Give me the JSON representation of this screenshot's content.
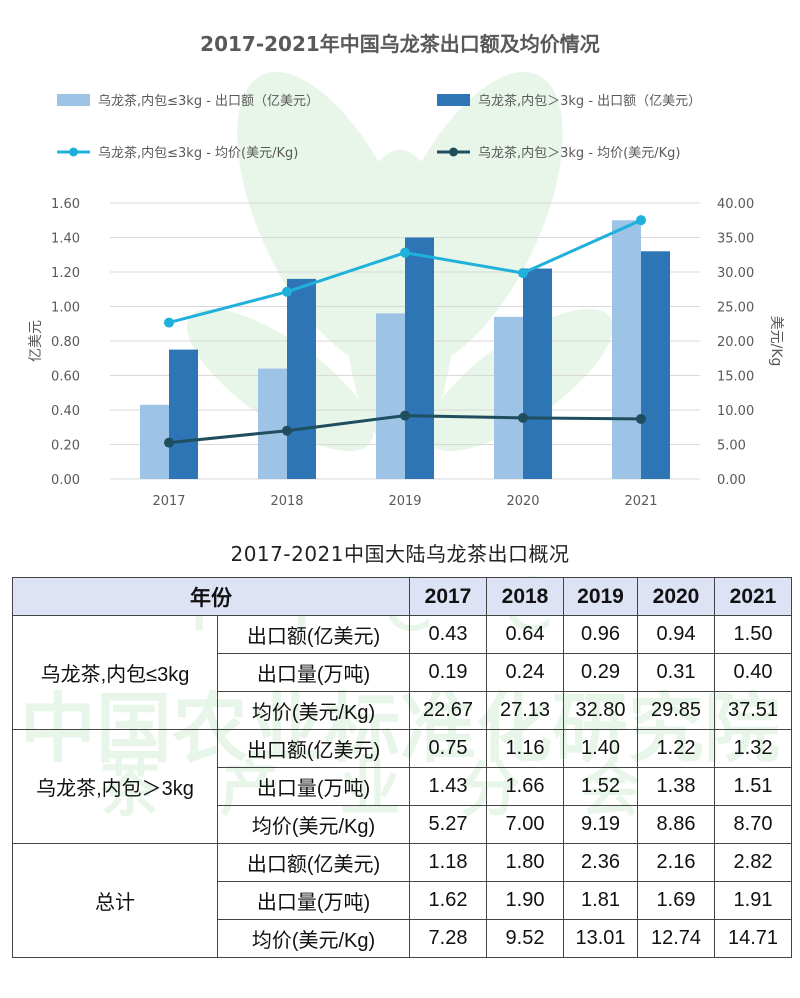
{
  "chart_data": {
    "type": "bar",
    "title": "2017-2021年中国乌龙茶出口额及均价情况",
    "categories": [
      "2017",
      "2018",
      "2019",
      "2020",
      "2021"
    ],
    "series": [
      {
        "name": "乌龙茶,内包≤3kg - 出口额（亿美元）",
        "type": "bar",
        "axis": "left",
        "color": "#9dc3e6",
        "values": [
          0.43,
          0.64,
          0.96,
          0.94,
          1.5
        ]
      },
      {
        "name": "乌龙茶,内包＞3kg - 出口额（亿美元）",
        "type": "bar",
        "axis": "left",
        "color": "#2e75b6",
        "values": [
          0.75,
          1.16,
          1.4,
          1.22,
          1.32
        ]
      },
      {
        "name": "乌龙茶,内包≤3kg - 均价(美元/Kg)",
        "type": "line",
        "axis": "right",
        "color": "#1fb1dc",
        "values": [
          22.67,
          27.13,
          32.8,
          29.85,
          37.51
        ]
      },
      {
        "name": "乌龙茶,内包＞3kg - 均价(美元/Kg)",
        "type": "line",
        "axis": "right",
        "color": "#1f4e5f",
        "values": [
          5.27,
          7.0,
          9.19,
          8.86,
          8.7
        ]
      }
    ],
    "y_left": {
      "label": "亿美元",
      "range": [
        0,
        1.6
      ],
      "ticks": [
        "0.00",
        "0.20",
        "0.40",
        "0.60",
        "0.80",
        "1.00",
        "1.20",
        "1.40",
        "1.60"
      ]
    },
    "y_right": {
      "label": "美元/Kg",
      "range": [
        0,
        40
      ],
      "ticks": [
        "0.00",
        "5.00",
        "10.00",
        "15.00",
        "20.00",
        "25.00",
        "30.00",
        "35.00",
        "40.00"
      ]
    },
    "grid": true,
    "legend_position": "top"
  },
  "table": {
    "title": "2017-2021中国大陆乌龙茶出口概况",
    "header": {
      "label": "年份",
      "years": [
        "2017",
        "2018",
        "2019",
        "2020",
        "2021"
      ]
    },
    "groups": [
      {
        "name": "乌龙茶,内包≤3kg",
        "rows": [
          {
            "metric": "出口额(亿美元)",
            "values": [
              "0.43",
              "0.64",
              "0.96",
              "0.94",
              "1.50"
            ]
          },
          {
            "metric": "出口量(万吨)",
            "values": [
              "0.19",
              "0.24",
              "0.29",
              "0.31",
              "0.40"
            ]
          },
          {
            "metric": "均价(美元/Kg)",
            "values": [
              "22.67",
              "27.13",
              "32.80",
              "29.85",
              "37.51"
            ]
          }
        ]
      },
      {
        "name": "乌龙茶,内包＞3kg",
        "rows": [
          {
            "metric": "出口额(亿美元)",
            "values": [
              "0.75",
              "1.16",
              "1.40",
              "1.22",
              "1.32"
            ]
          },
          {
            "metric": "出口量(万吨)",
            "values": [
              "1.43",
              "1.66",
              "1.52",
              "1.38",
              "1.51"
            ]
          },
          {
            "metric": "均价(美元/Kg)",
            "values": [
              "5.27",
              "7.00",
              "9.19",
              "8.86",
              "8.70"
            ]
          }
        ]
      },
      {
        "name": "总计",
        "rows": [
          {
            "metric": "出口额(亿美元)",
            "values": [
              "1.18",
              "1.80",
              "2.36",
              "2.16",
              "2.82"
            ]
          },
          {
            "metric": "出口量(万吨)",
            "values": [
              "1.62",
              "1.90",
              "1.81",
              "1.69",
              "1.91"
            ]
          },
          {
            "metric": "均价(美元/Kg)",
            "values": [
              "7.28",
              "9.52",
              "13.01",
              "12.74",
              "14.71"
            ]
          }
        ]
      }
    ]
  },
  "watermark": {
    "logo": "TICC",
    "line1": "中国农业标准化研究院",
    "line2": "茶产业分会",
    "color": "#4caf50"
  }
}
